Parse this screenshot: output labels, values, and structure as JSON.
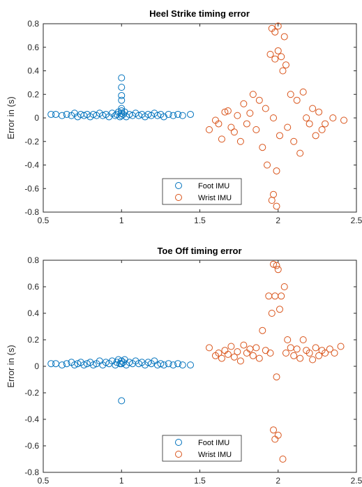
{
  "chart_data": [
    {
      "type": "scatter",
      "title": "Heel Strike timing error",
      "xlabel": "",
      "ylabel": "Error in (s)",
      "xlim": [
        0.5,
        2.5
      ],
      "ylim": [
        -0.8,
        0.8
      ],
      "xticks": [
        "0.5",
        "1",
        "1.5",
        "2",
        "2.5"
      ],
      "yticks": [
        "-0.8",
        "-0.6",
        "-0.4",
        "-0.2",
        "0",
        "0.2",
        "0.4",
        "0.6",
        "0.8"
      ],
      "legend": "bottom-center",
      "series": [
        {
          "name": "Foot IMU",
          "color": "#0072BD",
          "points": [
            [
              0.55,
              0.03
            ],
            [
              0.58,
              0.03
            ],
            [
              0.62,
              0.02
            ],
            [
              0.65,
              0.03
            ],
            [
              0.68,
              0.02
            ],
            [
              0.7,
              0.04
            ],
            [
              0.72,
              0.01
            ],
            [
              0.74,
              0.03
            ],
            [
              0.76,
              0.02
            ],
            [
              0.78,
              0.03
            ],
            [
              0.8,
              0.01
            ],
            [
              0.82,
              0.03
            ],
            [
              0.84,
              0.02
            ],
            [
              0.86,
              0.04
            ],
            [
              0.88,
              0.02
            ],
            [
              0.9,
              0.03
            ],
            [
              0.92,
              0.01
            ],
            [
              0.94,
              0.04
            ],
            [
              0.96,
              0.02
            ],
            [
              0.97,
              0.03
            ],
            [
              0.98,
              0.05
            ],
            [
              0.99,
              0.01
            ],
            [
              1.0,
              0.34
            ],
            [
              1.0,
              0.26
            ],
            [
              1.0,
              0.19
            ],
            [
              1.0,
              0.15
            ],
            [
              1.0,
              0.08
            ],
            [
              1.0,
              0.06
            ],
            [
              1.0,
              0.04
            ],
            [
              1.0,
              0.02
            ],
            [
              1.01,
              0.03
            ],
            [
              1.02,
              0.05
            ],
            [
              1.03,
              0.01
            ],
            [
              1.05,
              0.03
            ],
            [
              1.07,
              0.02
            ],
            [
              1.09,
              0.04
            ],
            [
              1.11,
              0.02
            ],
            [
              1.13,
              0.03
            ],
            [
              1.15,
              0.01
            ],
            [
              1.17,
              0.03
            ],
            [
              1.19,
              0.02
            ],
            [
              1.21,
              0.04
            ],
            [
              1.23,
              0.02
            ],
            [
              1.25,
              0.03
            ],
            [
              1.27,
              0.01
            ],
            [
              1.3,
              0.03
            ],
            [
              1.33,
              0.02
            ],
            [
              1.36,
              0.03
            ],
            [
              1.39,
              0.02
            ],
            [
              1.44,
              0.03
            ]
          ]
        },
        {
          "name": "Wrist IMU",
          "color": "#D95319",
          "points": [
            [
              1.56,
              -0.1
            ],
            [
              1.6,
              -0.02
            ],
            [
              1.62,
              -0.05
            ],
            [
              1.64,
              -0.18
            ],
            [
              1.66,
              0.05
            ],
            [
              1.68,
              0.06
            ],
            [
              1.7,
              -0.08
            ],
            [
              1.72,
              -0.12
            ],
            [
              1.74,
              0.02
            ],
            [
              1.76,
              -0.2
            ],
            [
              1.78,
              0.12
            ],
            [
              1.8,
              -0.05
            ],
            [
              1.82,
              0.04
            ],
            [
              1.84,
              0.2
            ],
            [
              1.86,
              -0.1
            ],
            [
              1.88,
              0.15
            ],
            [
              1.9,
              -0.25
            ],
            [
              1.92,
              0.08
            ],
            [
              1.93,
              -0.4
            ],
            [
              1.95,
              0.54
            ],
            [
              1.96,
              0.76
            ],
            [
              1.96,
              -0.7
            ],
            [
              1.97,
              -0.65
            ],
            [
              1.98,
              0.73
            ],
            [
              1.98,
              0.5
            ],
            [
              1.99,
              -0.45
            ],
            [
              2.0,
              0.78
            ],
            [
              2.0,
              0.57
            ],
            [
              2.01,
              -0.15
            ],
            [
              2.02,
              0.52
            ],
            [
              2.03,
              0.4
            ],
            [
              2.04,
              0.69
            ],
            [
              2.05,
              0.45
            ],
            [
              2.06,
              -0.08
            ],
            [
              2.08,
              0.2
            ],
            [
              2.1,
              -0.2
            ],
            [
              2.12,
              0.15
            ],
            [
              2.14,
              -0.3
            ],
            [
              2.16,
              0.22
            ],
            [
              2.18,
              0.0
            ],
            [
              2.2,
              -0.05
            ],
            [
              2.22,
              0.08
            ],
            [
              2.24,
              -0.15
            ],
            [
              2.26,
              0.05
            ],
            [
              2.28,
              -0.1
            ],
            [
              2.3,
              -0.05
            ],
            [
              2.35,
              0.0
            ],
            [
              2.42,
              -0.02
            ],
            [
              1.97,
              0.0
            ],
            [
              1.99,
              -0.75
            ]
          ]
        }
      ]
    },
    {
      "type": "scatter",
      "title": "Toe Off timing error",
      "xlabel": "",
      "ylabel": "Error in (s)",
      "xlim": [
        0.5,
        2.5
      ],
      "ylim": [
        -0.8,
        0.8
      ],
      "xticks": [
        "0.5",
        "1",
        "1.5",
        "2",
        "2.5"
      ],
      "yticks": [
        "-0.8",
        "-0.6",
        "-0.4",
        "-0.2",
        "0",
        "0.2",
        "0.4",
        "0.6",
        "0.8"
      ],
      "legend": "bottom-center",
      "series": [
        {
          "name": "Foot IMU",
          "color": "#0072BD",
          "points": [
            [
              0.55,
              0.02
            ],
            [
              0.58,
              0.02
            ],
            [
              0.62,
              0.01
            ],
            [
              0.65,
              0.02
            ],
            [
              0.68,
              0.03
            ],
            [
              0.7,
              0.01
            ],
            [
              0.72,
              0.02
            ],
            [
              0.74,
              0.03
            ],
            [
              0.76,
              0.01
            ],
            [
              0.78,
              0.02
            ],
            [
              0.8,
              0.03
            ],
            [
              0.82,
              0.01
            ],
            [
              0.84,
              0.02
            ],
            [
              0.86,
              0.04
            ],
            [
              0.88,
              0.01
            ],
            [
              0.9,
              0.03
            ],
            [
              0.92,
              0.02
            ],
            [
              0.94,
              0.04
            ],
            [
              0.96,
              0.01
            ],
            [
              0.97,
              0.03
            ],
            [
              0.98,
              0.05
            ],
            [
              0.99,
              0.02
            ],
            [
              1.0,
              -0.26
            ],
            [
              1.0,
              0.04
            ],
            [
              1.0,
              0.02
            ],
            [
              1.01,
              0.03
            ],
            [
              1.02,
              0.05
            ],
            [
              1.03,
              0.01
            ],
            [
              1.05,
              0.03
            ],
            [
              1.07,
              0.02
            ],
            [
              1.09,
              0.04
            ],
            [
              1.11,
              0.02
            ],
            [
              1.13,
              0.03
            ],
            [
              1.15,
              0.01
            ],
            [
              1.17,
              0.03
            ],
            [
              1.19,
              0.02
            ],
            [
              1.21,
              0.04
            ],
            [
              1.23,
              0.01
            ],
            [
              1.25,
              0.02
            ],
            [
              1.27,
              0.01
            ],
            [
              1.3,
              0.02
            ],
            [
              1.33,
              0.01
            ],
            [
              1.36,
              0.02
            ],
            [
              1.39,
              0.01
            ],
            [
              1.44,
              0.01
            ]
          ]
        },
        {
          "name": "Wrist IMU",
          "color": "#D95319",
          "points": [
            [
              1.56,
              0.14
            ],
            [
              1.6,
              0.08
            ],
            [
              1.62,
              0.1
            ],
            [
              1.64,
              0.06
            ],
            [
              1.66,
              0.12
            ],
            [
              1.68,
              0.09
            ],
            [
              1.7,
              0.15
            ],
            [
              1.72,
              0.07
            ],
            [
              1.74,
              0.11
            ],
            [
              1.76,
              0.04
            ],
            [
              1.78,
              0.16
            ],
            [
              1.8,
              0.1
            ],
            [
              1.82,
              0.13
            ],
            [
              1.84,
              0.08
            ],
            [
              1.86,
              0.14
            ],
            [
              1.88,
              0.06
            ],
            [
              1.9,
              0.27
            ],
            [
              1.92,
              0.12
            ],
            [
              1.94,
              0.53
            ],
            [
              1.95,
              0.1
            ],
            [
              1.96,
              0.4
            ],
            [
              1.97,
              0.77
            ],
            [
              1.97,
              -0.48
            ],
            [
              1.98,
              0.53
            ],
            [
              1.98,
              -0.55
            ],
            [
              1.99,
              0.76
            ],
            [
              1.99,
              -0.08
            ],
            [
              2.0,
              0.73
            ],
            [
              2.0,
              -0.52
            ],
            [
              2.01,
              0.43
            ],
            [
              2.02,
              0.53
            ],
            [
              2.03,
              -0.7
            ],
            [
              2.04,
              0.6
            ],
            [
              2.05,
              0.1
            ],
            [
              2.06,
              0.2
            ],
            [
              2.08,
              0.14
            ],
            [
              2.1,
              0.08
            ],
            [
              2.12,
              0.13
            ],
            [
              2.14,
              0.06
            ],
            [
              2.16,
              0.2
            ],
            [
              2.18,
              0.12
            ],
            [
              2.2,
              0.1
            ],
            [
              2.22,
              0.05
            ],
            [
              2.24,
              0.14
            ],
            [
              2.26,
              0.08
            ],
            [
              2.28,
              0.12
            ],
            [
              2.3,
              0.1
            ],
            [
              2.33,
              0.13
            ],
            [
              2.36,
              0.1
            ],
            [
              2.4,
              0.15
            ]
          ]
        }
      ]
    }
  ]
}
